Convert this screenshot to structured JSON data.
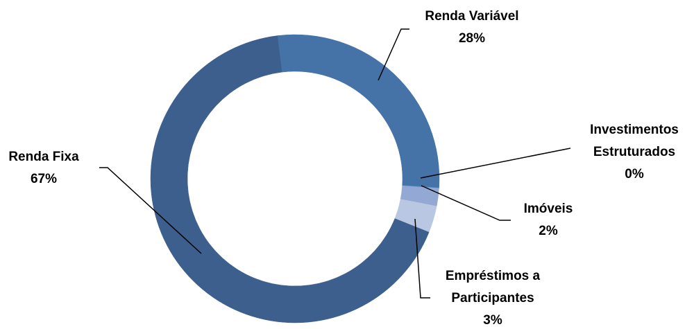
{
  "chart_data": {
    "type": "donut",
    "categories": [
      "Renda Variável",
      "Investimentos Estruturados",
      "Imóveis",
      "Empréstimos a Participantes",
      "Renda Fixa"
    ],
    "values": [
      28,
      0,
      2,
      3,
      67
    ],
    "value_labels": [
      "28%",
      "0%",
      "2%",
      "3%",
      "67%"
    ],
    "colors": [
      "#4573a8",
      "#4f86c6",
      "#93a8d2",
      "#b9c7e2",
      "#3d5f8e"
    ]
  }
}
